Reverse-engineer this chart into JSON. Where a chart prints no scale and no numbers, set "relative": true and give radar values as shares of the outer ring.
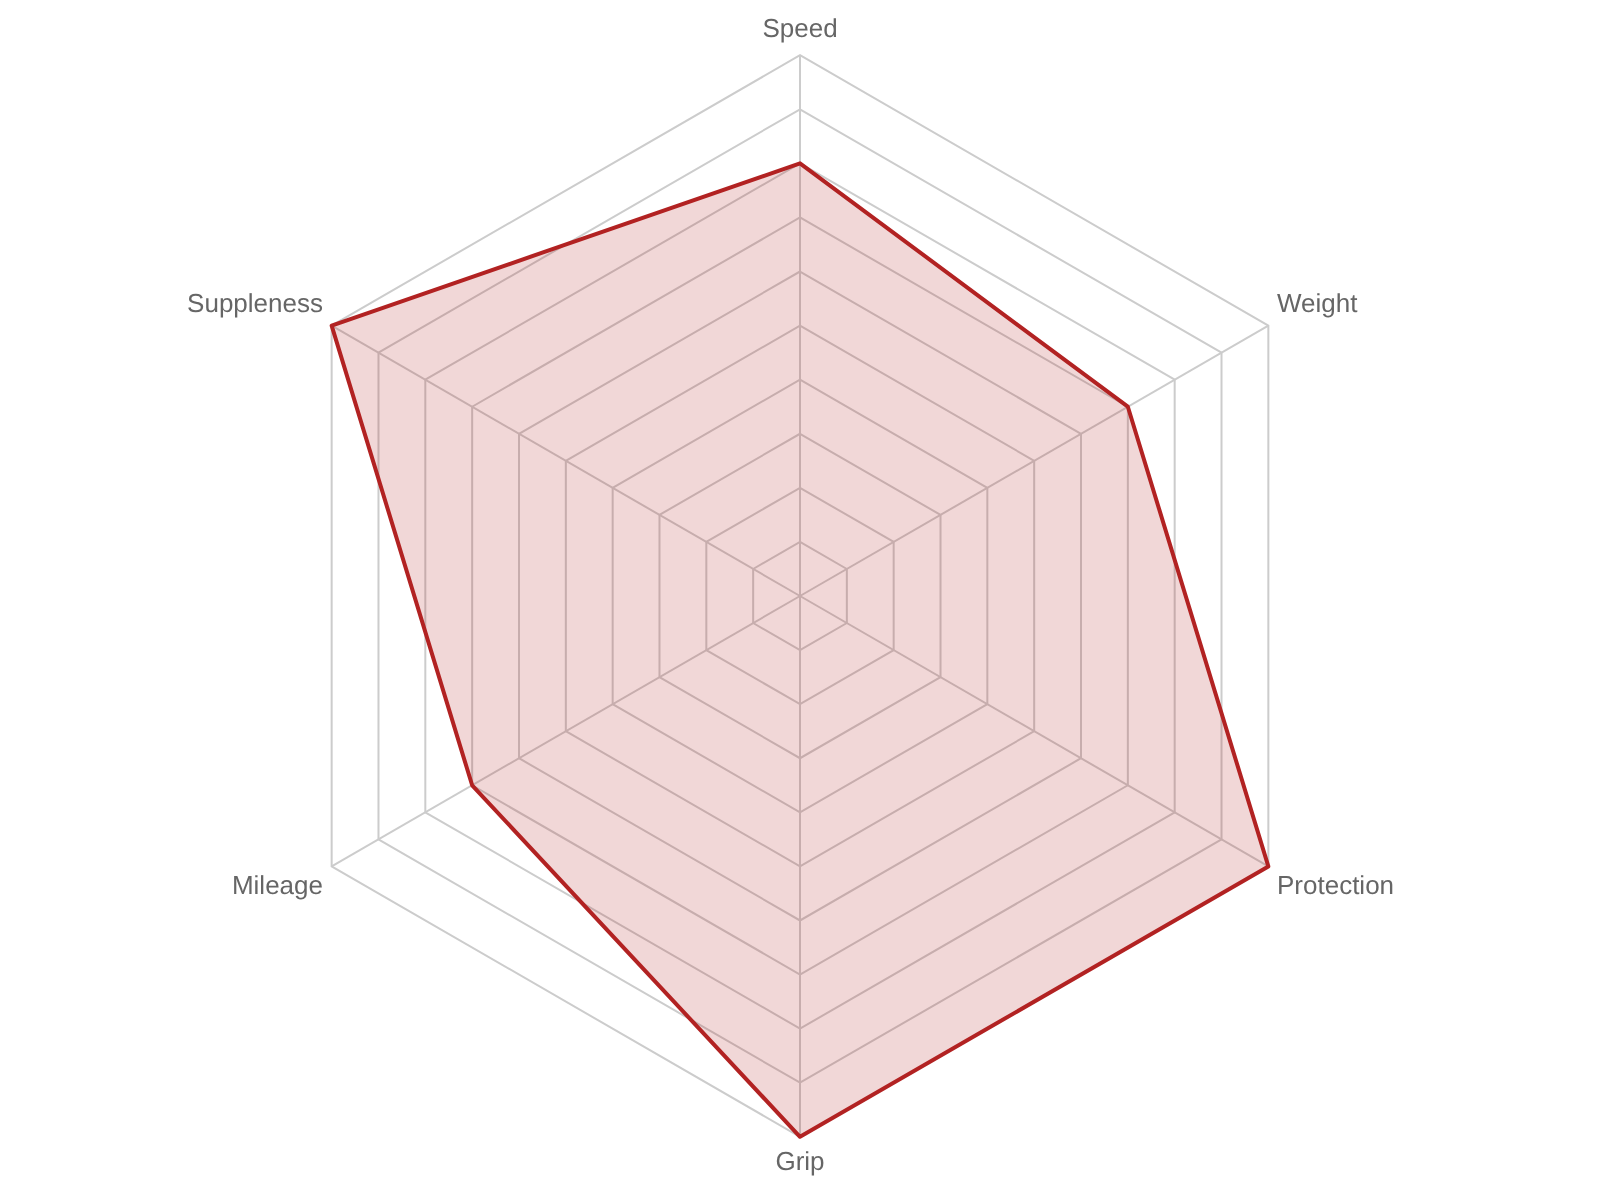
{
  "chart_data": {
    "type": "radar",
    "relative": true,
    "grid": true,
    "legend": false,
    "marker": "none",
    "categories": [
      "Speed",
      "Weight",
      "Protection",
      "Grip",
      "Mileage",
      "Suppleness"
    ],
    "series": [
      {
        "color": "#b22222",
        "values": [
          0.8,
          0.7,
          1,
          1,
          0.7,
          1
        ]
      }
    ]
  }
}
